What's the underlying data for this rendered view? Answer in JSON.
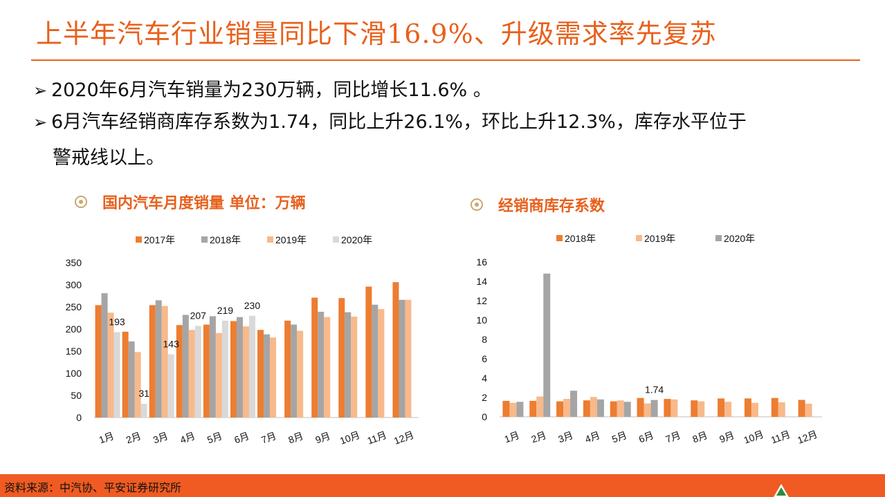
{
  "header": {
    "title": "上半年汽车行业销量同比下滑16.9%、升级需求率先复苏"
  },
  "bullets": {
    "marker": "➢",
    "line1": "2020年6月汽车销量为230万辆，同比增长11.6% 。",
    "line2": "6月汽车经销商库存系数为1.74，同比上升26.1%，环比上升12.3%，库存水平位于",
    "line3": "警戒线以上。"
  },
  "footer": {
    "source": "资料来源：中汽协、平安证券研究所"
  },
  "colors": {
    "accent": "#e8601c",
    "footer_bg": "#ef5b22"
  },
  "chart_data": [
    {
      "type": "bar",
      "title": "国内汽车月度销量 单位：万辆",
      "categories": [
        "1月",
        "2月",
        "3月",
        "4月",
        "5月",
        "6月",
        "7月",
        "8月",
        "9月",
        "10月",
        "11月",
        "12月"
      ],
      "series": [
        {
          "name": "2017年",
          "color": "#ed7d31",
          "values": [
            254,
            194,
            254,
            209,
            210,
            218,
            198,
            219,
            271,
            270,
            296,
            306
          ]
        },
        {
          "name": "2018年",
          "color": "#a5a5a5",
          "values": [
            281,
            172,
            265,
            232,
            229,
            227,
            188,
            210,
            239,
            238,
            255,
            266
          ]
        },
        {
          "name": "2019年",
          "color": "#f8b98b",
          "values": [
            237,
            148,
            252,
            198,
            191,
            206,
            181,
            196,
            227,
            228,
            245,
            266
          ]
        },
        {
          "name": "2020年",
          "color": "#d9d9d9",
          "values": [
            193,
            31,
            143,
            207,
            219,
            230,
            null,
            null,
            null,
            null,
            null,
            null
          ]
        }
      ],
      "data_labels": [
        {
          "category": "1月",
          "series": "2020年",
          "value": "193"
        },
        {
          "category": "2月",
          "series": "2020年",
          "value": "31"
        },
        {
          "category": "3月",
          "series": "2020年",
          "value": "143"
        },
        {
          "category": "4月",
          "series": "2020年",
          "value": "207"
        },
        {
          "category": "5月",
          "series": "2020年",
          "value": "219"
        },
        {
          "category": "6月",
          "series": "2020年",
          "value": "230"
        }
      ],
      "ylim": [
        0,
        350
      ],
      "yticks": [
        0,
        50,
        100,
        150,
        200,
        250,
        300,
        350
      ],
      "legend": "top"
    },
    {
      "type": "bar",
      "title": "经销商库存系数",
      "categories": [
        "1月",
        "2月",
        "3月",
        "4月",
        "5月",
        "6月",
        "7月",
        "8月",
        "9月",
        "10月",
        "11月",
        "12月"
      ],
      "series": [
        {
          "name": "2018年",
          "color": "#ed7d31",
          "values": [
            1.65,
            1.65,
            1.6,
            1.7,
            1.6,
            1.95,
            1.85,
            1.7,
            1.9,
            1.9,
            1.95,
            1.75
          ]
        },
        {
          "name": "2019年",
          "color": "#f8b98b",
          "values": [
            1.45,
            2.1,
            1.85,
            2.05,
            1.7,
            1.38,
            1.8,
            1.6,
            1.55,
            1.45,
            1.5,
            1.35
          ]
        },
        {
          "name": "2020年",
          "color": "#a5a5a5",
          "values": [
            1.55,
            14.8,
            2.7,
            1.8,
            1.55,
            1.74,
            null,
            null,
            null,
            null,
            null,
            null
          ]
        }
      ],
      "data_labels": [
        {
          "category": "6月",
          "series": "2020年",
          "value": "1.74"
        }
      ],
      "ylim": [
        0,
        16
      ],
      "yticks": [
        0,
        2,
        4,
        6,
        8,
        10,
        12,
        14,
        16
      ],
      "legend": "top"
    }
  ]
}
